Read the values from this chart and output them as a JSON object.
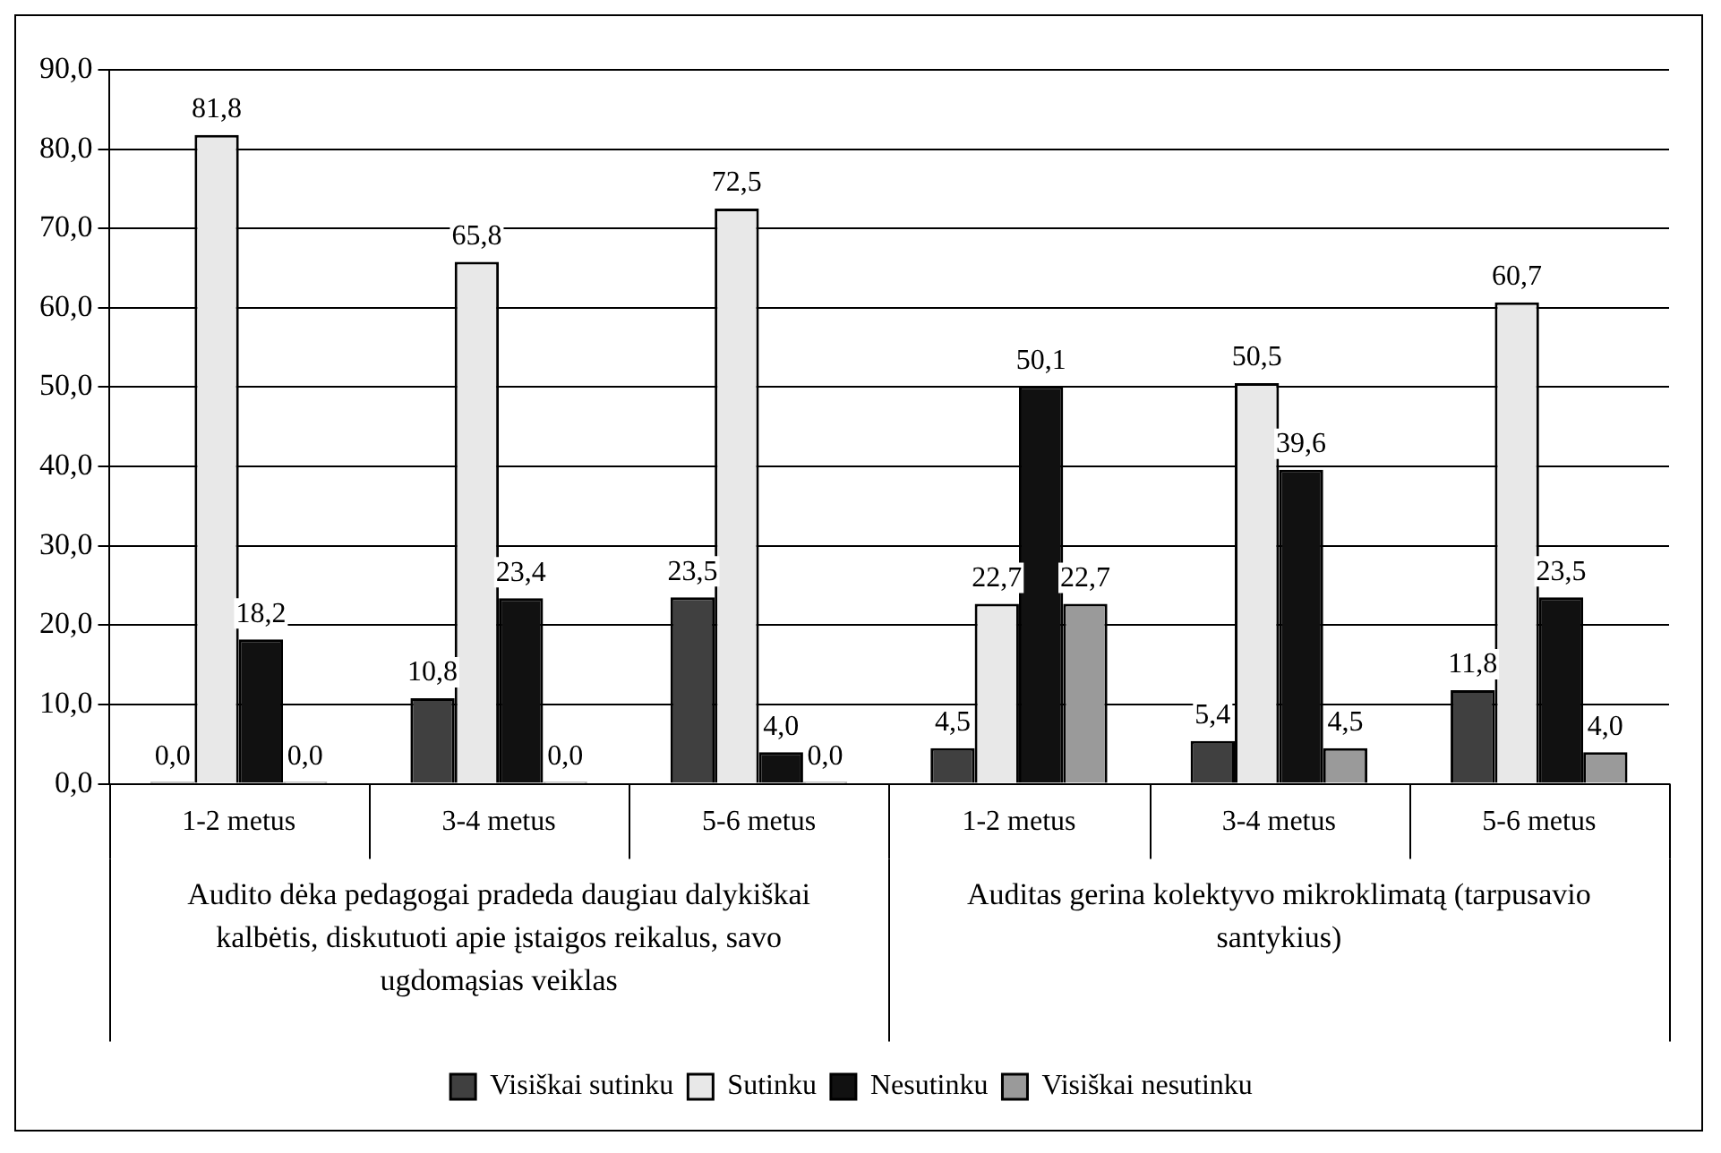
{
  "chart_data": {
    "type": "bar",
    "categories": [
      "1-2 metus",
      "3-4 metus",
      "5-6 metus",
      "1-2 metus",
      "3-4 metus",
      "5-6 metus"
    ],
    "annotations": [
      "Audito dėka pedagogai pradeda daugiau dalykiškai kalbėtis, diskutuoti apie įstaigos reikalus, savo ugdomąsias veiklas",
      "Auditas gerina kolektyvo mikroklimatą (tarpusavio santykius)"
    ],
    "series": [
      {
        "name": "Visiškai sutinku",
        "color": "#404040",
        "values": [
          0.0,
          10.8,
          23.5,
          4.5,
          5.4,
          11.8
        ],
        "value_labels": [
          "0,0",
          "10,8",
          "23,5",
          "4,5",
          "5,4",
          "11,8"
        ]
      },
      {
        "name": "Sutinku",
        "color": "#e8e8e8",
        "values": [
          81.8,
          65.8,
          72.5,
          22.7,
          50.5,
          60.7
        ],
        "value_labels": [
          "81,8",
          "65,8",
          "72,5",
          "22,7",
          "50,5",
          "60,7"
        ]
      },
      {
        "name": "Nesutinku",
        "color": "#111111",
        "values": [
          18.2,
          23.4,
          4.0,
          50.1,
          39.6,
          23.5
        ],
        "value_labels": [
          "18,2",
          "23,4",
          "4,0",
          "50,1",
          "39,6",
          "23,5"
        ]
      },
      {
        "name": "Visiškai nesutinku",
        "color": "#9a9a9a",
        "values": [
          0.0,
          0.0,
          0.0,
          22.7,
          4.5,
          4.0
        ],
        "value_labels": [
          "0,0",
          "0,0",
          "0,0",
          "22,7",
          "4,5",
          "4,0"
        ]
      }
    ],
    "ylim": [
      0,
      90
    ],
    "yticks": [
      {
        "value": 0,
        "label": "0,0"
      },
      {
        "value": 10,
        "label": "10,0"
      },
      {
        "value": 20,
        "label": "20,0"
      },
      {
        "value": 30,
        "label": "30,0"
      },
      {
        "value": 40,
        "label": "40,0"
      },
      {
        "value": 50,
        "label": "50,0"
      },
      {
        "value": 60,
        "label": "60,0"
      },
      {
        "value": 70,
        "label": "70,0"
      },
      {
        "value": 80,
        "label": "80,0"
      },
      {
        "value": 90,
        "label": "90,0"
      }
    ],
    "grid": "y",
    "legend": "bottom"
  }
}
